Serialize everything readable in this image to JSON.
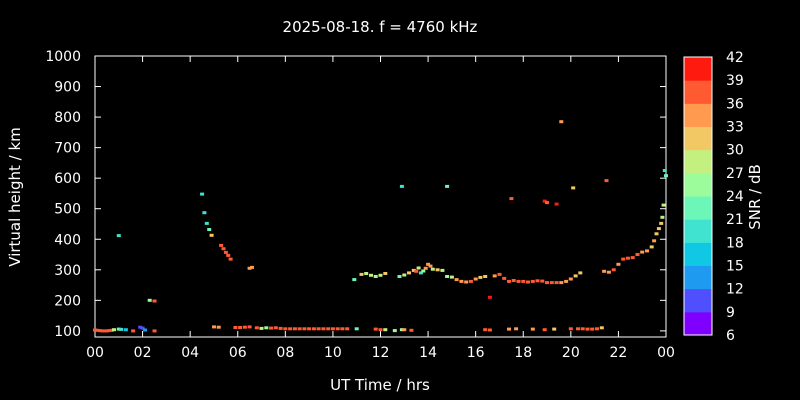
{
  "chart_data": {
    "type": "scatter",
    "title": "2025-08-18. f = 4760 kHz",
    "xlabel": "UT Time / hrs",
    "ylabel": "Virtual height / km",
    "colorbar_label": "SNR / dB",
    "xlim": [
      0,
      24
    ],
    "ylim": [
      80,
      1000
    ],
    "x_ticks": [
      "00",
      "02",
      "04",
      "06",
      "08",
      "10",
      "12",
      "14",
      "16",
      "18",
      "20",
      "22",
      "00"
    ],
    "y_ticks": [
      "100",
      "200",
      "300",
      "400",
      "500",
      "600",
      "700",
      "800",
      "900",
      "1000"
    ],
    "colorbar_ticks": [
      "6",
      "9",
      "12",
      "15",
      "18",
      "21",
      "24",
      "27",
      "30",
      "33",
      "36",
      "39",
      "42"
    ],
    "colorbar_range": [
      6,
      42
    ],
    "colorbar_colors": [
      "#8000ff",
      "#4f4ffd",
      "#1e9af0",
      "#10c8e4",
      "#3fe3d0",
      "#6cf6b8",
      "#9cfc9c",
      "#c4f080",
      "#f2c865",
      "#ff9a4f",
      "#ff5a32",
      "#ff1a10"
    ],
    "points": [
      {
        "x": 0.0,
        "y": 103,
        "snr": 37
      },
      {
        "x": 0.1,
        "y": 102,
        "snr": 38
      },
      {
        "x": 0.2,
        "y": 101,
        "snr": 37
      },
      {
        "x": 0.3,
        "y": 100,
        "snr": 38
      },
      {
        "x": 0.4,
        "y": 100,
        "snr": 37
      },
      {
        "x": 0.5,
        "y": 100,
        "snr": 38
      },
      {
        "x": 0.6,
        "y": 101,
        "snr": 37
      },
      {
        "x": 0.7,
        "y": 102,
        "snr": 36
      },
      {
        "x": 0.8,
        "y": 104,
        "snr": 28
      },
      {
        "x": 1.0,
        "y": 106,
        "snr": 22
      },
      {
        "x": 1.1,
        "y": 105,
        "snr": 19
      },
      {
        "x": 1.3,
        "y": 104,
        "snr": 16
      },
      {
        "x": 1.6,
        "y": 100,
        "snr": 37
      },
      {
        "x": 1.9,
        "y": 112,
        "snr": 10
      },
      {
        "x": 2.0,
        "y": 109,
        "snr": 9
      },
      {
        "x": 2.1,
        "y": 103,
        "snr": 12
      },
      {
        "x": 2.5,
        "y": 100,
        "snr": 37
      },
      {
        "x": 1.0,
        "y": 412,
        "snr": 20
      },
      {
        "x": 2.3,
        "y": 200,
        "snr": 25
      },
      {
        "x": 2.5,
        "y": 198,
        "snr": 38
      },
      {
        "x": 4.5,
        "y": 548,
        "snr": 20
      },
      {
        "x": 4.6,
        "y": 487,
        "snr": 19
      },
      {
        "x": 4.7,
        "y": 452,
        "snr": 18
      },
      {
        "x": 4.8,
        "y": 432,
        "snr": 21
      },
      {
        "x": 4.9,
        "y": 413,
        "snr": 31
      },
      {
        "x": 5.3,
        "y": 380,
        "snr": 36
      },
      {
        "x": 5.4,
        "y": 369,
        "snr": 37
      },
      {
        "x": 5.5,
        "y": 357,
        "snr": 38
      },
      {
        "x": 5.6,
        "y": 347,
        "snr": 36
      },
      {
        "x": 5.7,
        "y": 335,
        "snr": 37
      },
      {
        "x": 6.5,
        "y": 305,
        "snr": 34
      },
      {
        "x": 6.6,
        "y": 308,
        "snr": 33
      },
      {
        "x": 5.0,
        "y": 113,
        "snr": 33
      },
      {
        "x": 5.2,
        "y": 112,
        "snr": 34
      },
      {
        "x": 5.9,
        "y": 111,
        "snr": 38
      },
      {
        "x": 6.1,
        "y": 111,
        "snr": 37
      },
      {
        "x": 6.3,
        "y": 112,
        "snr": 38
      },
      {
        "x": 6.5,
        "y": 113,
        "snr": 37
      },
      {
        "x": 6.8,
        "y": 110,
        "snr": 38
      },
      {
        "x": 7.0,
        "y": 108,
        "snr": 29
      },
      {
        "x": 7.2,
        "y": 110,
        "snr": 26
      },
      {
        "x": 7.4,
        "y": 109,
        "snr": 38
      },
      {
        "x": 7.6,
        "y": 110,
        "snr": 37
      },
      {
        "x": 7.8,
        "y": 108,
        "snr": 38
      },
      {
        "x": 8.0,
        "y": 107,
        "snr": 37
      },
      {
        "x": 8.2,
        "y": 107,
        "snr": 38
      },
      {
        "x": 8.4,
        "y": 107,
        "snr": 37
      },
      {
        "x": 8.6,
        "y": 107,
        "snr": 38
      },
      {
        "x": 8.8,
        "y": 107,
        "snr": 37
      },
      {
        "x": 9.0,
        "y": 107,
        "snr": 38
      },
      {
        "x": 9.2,
        "y": 107,
        "snr": 37
      },
      {
        "x": 9.4,
        "y": 107,
        "snr": 38
      },
      {
        "x": 9.6,
        "y": 107,
        "snr": 37
      },
      {
        "x": 9.8,
        "y": 107,
        "snr": 38
      },
      {
        "x": 10.0,
        "y": 107,
        "snr": 37
      },
      {
        "x": 10.2,
        "y": 107,
        "snr": 38
      },
      {
        "x": 10.4,
        "y": 107,
        "snr": 37
      },
      {
        "x": 10.6,
        "y": 107,
        "snr": 38
      },
      {
        "x": 11.0,
        "y": 107,
        "snr": 21
      },
      {
        "x": 10.9,
        "y": 268,
        "snr": 22
      },
      {
        "x": 11.2,
        "y": 285,
        "snr": 30
      },
      {
        "x": 11.4,
        "y": 288,
        "snr": 29
      },
      {
        "x": 11.6,
        "y": 282,
        "snr": 27
      },
      {
        "x": 11.8,
        "y": 278,
        "snr": 25
      },
      {
        "x": 12.0,
        "y": 282,
        "snr": 29
      },
      {
        "x": 12.2,
        "y": 288,
        "snr": 31
      },
      {
        "x": 11.8,
        "y": 106,
        "snr": 37
      },
      {
        "x": 12.0,
        "y": 104,
        "snr": 36
      },
      {
        "x": 12.2,
        "y": 104,
        "snr": 29
      },
      {
        "x": 12.6,
        "y": 101,
        "snr": 24
      },
      {
        "x": 12.9,
        "y": 104,
        "snr": 25
      },
      {
        "x": 13.0,
        "y": 104,
        "snr": 33
      },
      {
        "x": 13.3,
        "y": 102,
        "snr": 37
      },
      {
        "x": 12.8,
        "y": 278,
        "snr": 22
      },
      {
        "x": 13.0,
        "y": 283,
        "snr": 28
      },
      {
        "x": 13.2,
        "y": 290,
        "snr": 30
      },
      {
        "x": 13.4,
        "y": 298,
        "snr": 31
      },
      {
        "x": 13.5,
        "y": 295,
        "snr": 36
      },
      {
        "x": 13.6,
        "y": 306,
        "snr": 27
      },
      {
        "x": 13.7,
        "y": 290,
        "snr": 20
      },
      {
        "x": 13.8,
        "y": 296,
        "snr": 26
      },
      {
        "x": 13.9,
        "y": 305,
        "snr": 33
      },
      {
        "x": 14.0,
        "y": 318,
        "snr": 35
      },
      {
        "x": 14.1,
        "y": 312,
        "snr": 33
      },
      {
        "x": 14.2,
        "y": 302,
        "snr": 28
      },
      {
        "x": 14.4,
        "y": 300,
        "snr": 31
      },
      {
        "x": 14.6,
        "y": 298,
        "snr": 27
      },
      {
        "x": 14.8,
        "y": 278,
        "snr": 25
      },
      {
        "x": 15.0,
        "y": 276,
        "snr": 28
      },
      {
        "x": 15.2,
        "y": 268,
        "snr": 33
      },
      {
        "x": 15.4,
        "y": 262,
        "snr": 35
      },
      {
        "x": 15.6,
        "y": 260,
        "snr": 34
      },
      {
        "x": 15.8,
        "y": 262,
        "snr": 36
      },
      {
        "x": 16.0,
        "y": 270,
        "snr": 33
      },
      {
        "x": 16.2,
        "y": 275,
        "snr": 31
      },
      {
        "x": 16.4,
        "y": 278,
        "snr": 32
      },
      {
        "x": 16.8,
        "y": 280,
        "snr": 35
      },
      {
        "x": 17.0,
        "y": 285,
        "snr": 37
      },
      {
        "x": 17.2,
        "y": 272,
        "snr": 38
      },
      {
        "x": 17.4,
        "y": 262,
        "snr": 37
      },
      {
        "x": 17.6,
        "y": 265,
        "snr": 38
      },
      {
        "x": 17.8,
        "y": 262,
        "snr": 37
      },
      {
        "x": 18.0,
        "y": 262,
        "snr": 38
      },
      {
        "x": 18.2,
        "y": 260,
        "snr": 37
      },
      {
        "x": 18.4,
        "y": 262,
        "snr": 38
      },
      {
        "x": 18.6,
        "y": 264,
        "snr": 37
      },
      {
        "x": 18.8,
        "y": 263,
        "snr": 38
      },
      {
        "x": 19.0,
        "y": 258,
        "snr": 37
      },
      {
        "x": 19.2,
        "y": 258,
        "snr": 38
      },
      {
        "x": 19.4,
        "y": 258,
        "snr": 37
      },
      {
        "x": 19.6,
        "y": 258,
        "snr": 33
      },
      {
        "x": 19.8,
        "y": 262,
        "snr": 34
      },
      {
        "x": 20.0,
        "y": 270,
        "snr": 33
      },
      {
        "x": 20.2,
        "y": 280,
        "snr": 32
      },
      {
        "x": 20.4,
        "y": 290,
        "snr": 30
      },
      {
        "x": 16.6,
        "y": 210,
        "snr": 39
      },
      {
        "x": 16.4,
        "y": 104,
        "snr": 38
      },
      {
        "x": 16.6,
        "y": 103,
        "snr": 37
      },
      {
        "x": 17.4,
        "y": 106,
        "snr": 35
      },
      {
        "x": 17.7,
        "y": 107,
        "snr": 34
      },
      {
        "x": 18.4,
        "y": 106,
        "snr": 34
      },
      {
        "x": 18.9,
        "y": 104,
        "snr": 37
      },
      {
        "x": 19.3,
        "y": 106,
        "snr": 30
      },
      {
        "x": 20.0,
        "y": 107,
        "snr": 38
      },
      {
        "x": 20.3,
        "y": 107,
        "snr": 37
      },
      {
        "x": 20.5,
        "y": 107,
        "snr": 36
      },
      {
        "x": 20.7,
        "y": 106,
        "snr": 38
      },
      {
        "x": 20.9,
        "y": 106,
        "snr": 37
      },
      {
        "x": 21.1,
        "y": 107,
        "snr": 38
      },
      {
        "x": 21.3,
        "y": 110,
        "snr": 30
      },
      {
        "x": 21.4,
        "y": 295,
        "snr": 34
      },
      {
        "x": 21.6,
        "y": 292,
        "snr": 35
      },
      {
        "x": 21.8,
        "y": 300,
        "snr": 37
      },
      {
        "x": 22.0,
        "y": 318,
        "snr": 35
      },
      {
        "x": 22.2,
        "y": 335,
        "snr": 37
      },
      {
        "x": 22.4,
        "y": 338,
        "snr": 36
      },
      {
        "x": 22.6,
        "y": 340,
        "snr": 37
      },
      {
        "x": 22.8,
        "y": 350,
        "snr": 36
      },
      {
        "x": 23.0,
        "y": 358,
        "snr": 35
      },
      {
        "x": 23.2,
        "y": 362,
        "snr": 34
      },
      {
        "x": 23.4,
        "y": 375,
        "snr": 32
      },
      {
        "x": 23.5,
        "y": 395,
        "snr": 33
      },
      {
        "x": 23.6,
        "y": 418,
        "snr": 32
      },
      {
        "x": 23.7,
        "y": 435,
        "snr": 31
      },
      {
        "x": 23.8,
        "y": 452,
        "snr": 30
      },
      {
        "x": 23.85,
        "y": 472,
        "snr": 29
      },
      {
        "x": 23.9,
        "y": 512,
        "snr": 28
      },
      {
        "x": 23.95,
        "y": 625,
        "snr": 20
      },
      {
        "x": 24.0,
        "y": 608,
        "snr": 22
      },
      {
        "x": 12.9,
        "y": 573,
        "snr": 20
      },
      {
        "x": 14.8,
        "y": 573,
        "snr": 21
      },
      {
        "x": 17.5,
        "y": 533,
        "snr": 36
      },
      {
        "x": 18.9,
        "y": 525,
        "snr": 39
      },
      {
        "x": 19.0,
        "y": 520,
        "snr": 38
      },
      {
        "x": 19.4,
        "y": 515,
        "snr": 39
      },
      {
        "x": 19.6,
        "y": 785,
        "snr": 35
      },
      {
        "x": 20.1,
        "y": 568,
        "snr": 30
      },
      {
        "x": 21.5,
        "y": 592,
        "snr": 37
      }
    ]
  }
}
